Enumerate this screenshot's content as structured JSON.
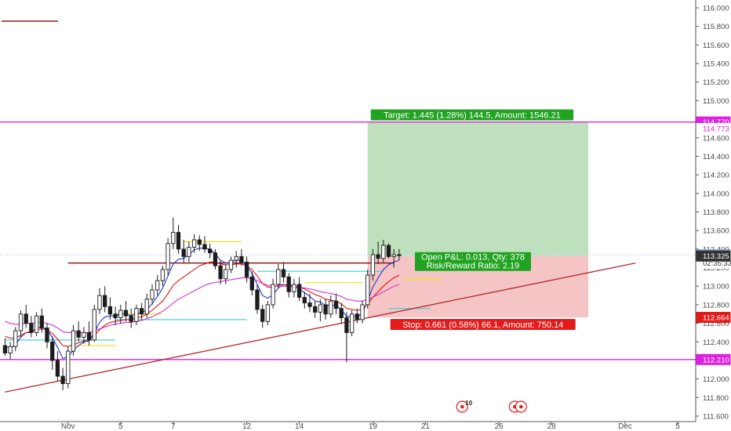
{
  "chart_data": {
    "type": "candlestick",
    "title": "",
    "ylim": [
      111.58,
      116.12
    ],
    "xlim": [
      0,
      133
    ],
    "grid": false,
    "y_ticks": [
      111.6,
      111.8,
      112.0,
      112.2,
      112.4,
      112.6,
      112.8,
      113.0,
      113.2,
      113.4,
      113.6,
      113.8,
      114.0,
      114.2,
      114.4,
      114.6,
      114.8,
      115.0,
      115.2,
      115.4,
      115.6,
      115.8,
      116.0
    ],
    "y_tick_labels": [
      "111.600",
      "111.800",
      "112.000",
      "112.200",
      "112.400",
      "112.600",
      "112.800",
      "113.000",
      "113.200",
      "113.400",
      "113.600",
      "113.800",
      "114.000",
      "114.200",
      "114.400",
      "114.600",
      "114.800",
      "115.000",
      "115.200",
      "115.400",
      "115.600",
      "115.800",
      "116.000"
    ],
    "x_ticks": [
      {
        "x": 12,
        "label": "Nov"
      },
      {
        "x": 22,
        "label": "5"
      },
      {
        "x": 32,
        "label": "7"
      },
      {
        "x": 46,
        "label": "12"
      },
      {
        "x": 56,
        "label": "14"
      },
      {
        "x": 70,
        "label": "19"
      },
      {
        "x": 80,
        "label": "21"
      },
      {
        "x": 94,
        "label": "26"
      },
      {
        "x": 104,
        "label": "28"
      },
      {
        "x": 118,
        "label": "Dec"
      },
      {
        "x": 128,
        "label": "5"
      }
    ],
    "candles": [
      [
        112.36,
        112.44,
        112.25,
        112.28
      ],
      [
        112.28,
        112.4,
        112.21,
        112.35
      ],
      [
        112.35,
        112.56,
        112.3,
        112.52
      ],
      [
        112.52,
        112.74,
        112.45,
        112.7
      ],
      [
        112.7,
        112.8,
        112.55,
        112.6
      ],
      [
        112.6,
        112.68,
        112.45,
        112.5
      ],
      [
        112.5,
        112.72,
        112.46,
        112.68
      ],
      [
        112.68,
        112.76,
        112.5,
        112.55
      ],
      [
        112.55,
        112.6,
        112.33,
        112.4
      ],
      [
        112.4,
        112.46,
        112.1,
        112.2
      ],
      [
        112.2,
        112.3,
        111.98,
        112.03
      ],
      [
        112.03,
        112.12,
        111.88,
        111.95
      ],
      [
        111.95,
        112.35,
        111.9,
        112.3
      ],
      [
        112.3,
        112.58,
        112.25,
        112.52
      ],
      [
        112.52,
        112.62,
        112.4,
        112.45
      ],
      [
        112.45,
        112.56,
        112.38,
        112.5
      ],
      [
        112.5,
        112.62,
        112.36,
        112.42
      ],
      [
        112.42,
        112.8,
        112.4,
        112.75
      ],
      [
        112.75,
        112.98,
        112.7,
        112.9
      ],
      [
        112.9,
        113.0,
        112.72,
        112.78
      ],
      [
        112.78,
        112.88,
        112.64,
        112.7
      ],
      [
        112.7,
        112.78,
        112.58,
        112.66
      ],
      [
        112.66,
        112.8,
        112.6,
        112.74
      ],
      [
        112.74,
        112.84,
        112.62,
        112.68
      ],
      [
        112.68,
        112.76,
        112.55,
        112.62
      ],
      [
        112.62,
        112.8,
        112.58,
        112.76
      ],
      [
        112.76,
        112.82,
        112.64,
        112.7
      ],
      [
        112.7,
        112.92,
        112.66,
        112.86
      ],
      [
        112.86,
        113.02,
        112.8,
        112.96
      ],
      [
        112.96,
        113.12,
        112.9,
        113.06
      ],
      [
        113.06,
        113.22,
        113.0,
        113.18
      ],
      [
        113.18,
        113.52,
        113.12,
        113.46
      ],
      [
        113.46,
        113.74,
        113.4,
        113.58
      ],
      [
        113.58,
        113.66,
        113.35,
        113.4
      ],
      [
        113.4,
        113.5,
        113.25,
        113.32
      ],
      [
        113.32,
        113.48,
        113.26,
        113.42
      ],
      [
        113.42,
        113.56,
        113.36,
        113.5
      ],
      [
        113.5,
        113.55,
        113.38,
        113.45
      ],
      [
        113.45,
        113.54,
        113.36,
        113.4
      ],
      [
        113.4,
        113.46,
        113.3,
        113.36
      ],
      [
        113.36,
        113.4,
        113.18,
        113.22
      ],
      [
        113.22,
        113.28,
        113.02,
        113.08
      ],
      [
        113.08,
        113.24,
        113.02,
        113.18
      ],
      [
        113.18,
        113.32,
        113.14,
        113.28
      ],
      [
        113.28,
        113.38,
        113.2,
        113.32
      ],
      [
        113.32,
        113.4,
        113.22,
        113.26
      ],
      [
        113.26,
        113.32,
        113.04,
        113.1
      ],
      [
        113.1,
        113.16,
        112.9,
        112.96
      ],
      [
        112.96,
        113.02,
        112.7,
        112.75
      ],
      [
        112.75,
        112.8,
        112.55,
        112.62
      ],
      [
        112.62,
        112.84,
        112.58,
        112.8
      ],
      [
        112.8,
        113.08,
        112.76,
        113.02
      ],
      [
        113.02,
        113.24,
        112.98,
        113.18
      ],
      [
        113.18,
        113.26,
        113.04,
        113.1
      ],
      [
        113.1,
        113.14,
        112.88,
        112.94
      ],
      [
        112.94,
        113.08,
        112.88,
        113.02
      ],
      [
        113.02,
        113.1,
        112.84,
        112.88
      ],
      [
        112.88,
        112.94,
        112.76,
        112.82
      ],
      [
        112.82,
        112.92,
        112.72,
        112.78
      ],
      [
        112.78,
        112.84,
        112.66,
        112.72
      ],
      [
        112.72,
        112.86,
        112.62,
        112.8
      ],
      [
        112.8,
        112.86,
        112.64,
        112.7
      ],
      [
        112.7,
        112.9,
        112.66,
        112.84
      ],
      [
        112.84,
        112.92,
        112.7,
        112.76
      ],
      [
        112.76,
        112.82,
        112.6,
        112.66
      ],
      [
        112.66,
        112.72,
        112.18,
        112.5
      ],
      [
        112.5,
        112.74,
        112.46,
        112.7
      ],
      [
        112.7,
        112.76,
        112.6,
        112.64
      ],
      [
        112.64,
        112.84,
        112.6,
        112.8
      ],
      [
        112.8,
        113.18,
        112.76,
        113.12
      ],
      [
        113.12,
        113.4,
        113.06,
        113.34
      ],
      [
        113.34,
        113.48,
        113.24,
        113.3
      ],
      [
        113.3,
        113.5,
        113.26,
        113.44
      ],
      [
        113.44,
        113.46,
        113.3,
        113.32
      ],
      [
        113.32,
        113.4,
        113.2,
        113.34
      ],
      [
        113.34,
        113.4,
        113.28,
        113.33
      ]
    ],
    "moving_averages": [
      {
        "color": "#1f3ad6",
        "values": [
          112.36,
          112.33,
          112.37,
          112.45,
          112.5,
          112.5,
          112.55,
          112.56,
          112.53,
          112.45,
          112.34,
          112.22,
          112.24,
          112.31,
          112.36,
          112.4,
          112.41,
          112.5,
          112.61,
          112.67,
          112.68,
          112.68,
          112.7,
          112.7,
          112.68,
          112.71,
          112.71,
          112.75,
          112.81,
          112.89,
          112.98,
          113.11,
          113.24,
          113.29,
          113.3,
          113.34,
          113.39,
          113.41,
          113.41,
          113.4,
          113.35,
          113.28,
          113.25,
          113.26,
          113.28,
          113.27,
          113.22,
          113.14,
          113.02,
          112.9,
          112.87,
          112.91,
          112.98,
          113.02,
          113.0,
          113.0,
          112.97,
          112.93,
          112.89,
          112.84,
          112.83,
          112.79,
          112.8,
          112.79,
          112.75,
          112.67,
          112.68,
          112.67,
          112.71,
          112.84,
          112.99,
          113.09,
          113.18,
          113.23,
          113.26,
          113.28
        ]
      },
      {
        "color": "#e01515",
        "values": [
          112.46,
          112.44,
          112.44,
          112.47,
          112.5,
          112.51,
          112.53,
          112.54,
          112.53,
          112.49,
          112.43,
          112.36,
          112.35,
          112.37,
          112.39,
          112.41,
          112.42,
          112.47,
          112.53,
          112.58,
          112.61,
          112.62,
          112.63,
          112.64,
          112.64,
          112.66,
          112.67,
          112.7,
          112.74,
          112.79,
          112.84,
          112.92,
          113.01,
          113.06,
          113.1,
          113.14,
          113.18,
          113.22,
          113.24,
          113.26,
          113.26,
          113.24,
          113.23,
          113.23,
          113.24,
          113.24,
          113.22,
          113.18,
          113.11,
          113.03,
          112.99,
          112.99,
          113.01,
          113.02,
          113.01,
          113.01,
          112.99,
          112.97,
          112.94,
          112.91,
          112.89,
          112.86,
          112.85,
          112.84,
          112.81,
          112.76,
          112.75,
          112.74,
          112.75,
          112.81,
          112.88,
          112.94,
          113.0,
          113.05,
          113.09,
          113.12
        ]
      },
      {
        "color": "#d62fd6",
        "values": [
          112.62,
          112.6,
          112.59,
          112.59,
          112.6,
          112.6,
          112.61,
          112.61,
          112.6,
          112.58,
          112.55,
          112.51,
          112.5,
          112.5,
          112.5,
          112.5,
          112.5,
          112.52,
          112.54,
          112.56,
          112.58,
          112.59,
          112.6,
          112.61,
          112.61,
          112.62,
          112.63,
          112.65,
          112.67,
          112.7,
          112.73,
          112.77,
          112.82,
          112.86,
          112.89,
          112.92,
          112.95,
          112.98,
          113.01,
          113.03,
          113.04,
          113.05,
          113.06,
          113.07,
          113.08,
          113.09,
          113.09,
          113.08,
          113.06,
          113.03,
          113.01,
          113.0,
          113.0,
          113.0,
          113.0,
          112.99,
          112.99,
          112.98,
          112.97,
          112.96,
          112.94,
          112.93,
          112.92,
          112.91,
          112.89,
          112.86,
          112.85,
          112.84,
          112.84,
          112.86,
          112.88,
          112.91,
          112.94,
          112.97,
          113.0,
          113.02
        ]
      }
    ],
    "trend_line": {
      "color": "#b52a2a",
      "points": [
        [
          0,
          111.86
        ],
        [
          120,
          113.25
        ]
      ]
    },
    "resistance_line": {
      "color": "#8b1a1a",
      "points": [
        [
          12,
          113.25
        ],
        [
          74,
          113.25
        ]
      ]
    },
    "horizontal_levels": [
      {
        "value": 114.77,
        "color": "#e020e0"
      },
      {
        "value": 112.21,
        "color": "#e020e0"
      }
    ],
    "short_segments": [
      {
        "color": "#4fd0e0",
        "points": [
          [
            0,
            112.42
          ],
          [
            21,
            112.42
          ]
        ]
      },
      {
        "color": "#4fd0e0",
        "points": [
          [
            21,
            112.64
          ],
          [
            46,
            112.64
          ]
        ]
      },
      {
        "color": "#4fd0e0",
        "points": [
          [
            48,
            113.16
          ],
          [
            72,
            113.16
          ]
        ]
      },
      {
        "color": "#4fd0e0",
        "points": [
          [
            73,
            112.76
          ],
          [
            81,
            112.76
          ]
        ]
      },
      {
        "color": "#f2e21b",
        "points": [
          [
            13,
            112.36
          ],
          [
            21,
            112.36
          ]
        ]
      },
      {
        "color": "#f2e21b",
        "points": [
          [
            21,
            112.7
          ],
          [
            30,
            112.7
          ]
        ]
      },
      {
        "color": "#f2e21b",
        "points": [
          [
            34,
            113.48
          ],
          [
            45,
            113.48
          ]
        ]
      },
      {
        "color": "#f2e21b",
        "points": [
          [
            57,
            113.04
          ],
          [
            68,
            113.04
          ]
        ]
      },
      {
        "color": "#f2e21b",
        "points": [
          [
            76,
            113.08
          ],
          [
            83,
            113.08
          ]
        ]
      }
    ],
    "position": {
      "x_start": 69,
      "x_end": 111,
      "entry": 113.325,
      "target": 114.77,
      "stop": 112.664,
      "target_label": "Target: 1.445 (1.28%) 144.5, Amount: 1546.21",
      "pnl_label_1": "Open P&L: 0.013, Qty: 378",
      "pnl_label_2": "Risk/Reward Ratio: 2.19",
      "stop_label": "Stop: 0.661 (0.58%) 66.1, Amount: 750.14",
      "profit_fill": "#bfe0bc",
      "loss_fill": "#f5c4c4",
      "label_green": "#21a321",
      "label_red": "#e41b1b"
    },
    "price_tags": [
      {
        "value": 114.77,
        "label": "114.770",
        "color": "#e020e0",
        "text_color": "#ffffff"
      },
      {
        "value": 114.7,
        "label": "114.773",
        "color": "#ffffff",
        "text_color": "#e020e0"
      },
      {
        "value": 113.338,
        "label": "113.338",
        "color": "#7f9dd6",
        "text_color": "#ffffff"
      },
      {
        "value": 113.25,
        "label": "02:35:33",
        "color": "#ffffff",
        "text_color": "#333333"
      },
      {
        "value": 113.325,
        "label": "113.325",
        "color": "#333333",
        "text_color": "#ffffff"
      },
      {
        "value": 112.664,
        "label": "112.664",
        "color": "#e41b1b",
        "text_color": "#ffffff"
      },
      {
        "value": 112.21,
        "label": "112.210",
        "color": "#e020e0",
        "text_color": "#ffffff"
      }
    ],
    "event_markers": [
      {
        "x": 87,
        "label": "10"
      },
      {
        "x": 97,
        "label": ""
      }
    ],
    "legend_swatch": {
      "color": "#8b1a1a"
    }
  }
}
